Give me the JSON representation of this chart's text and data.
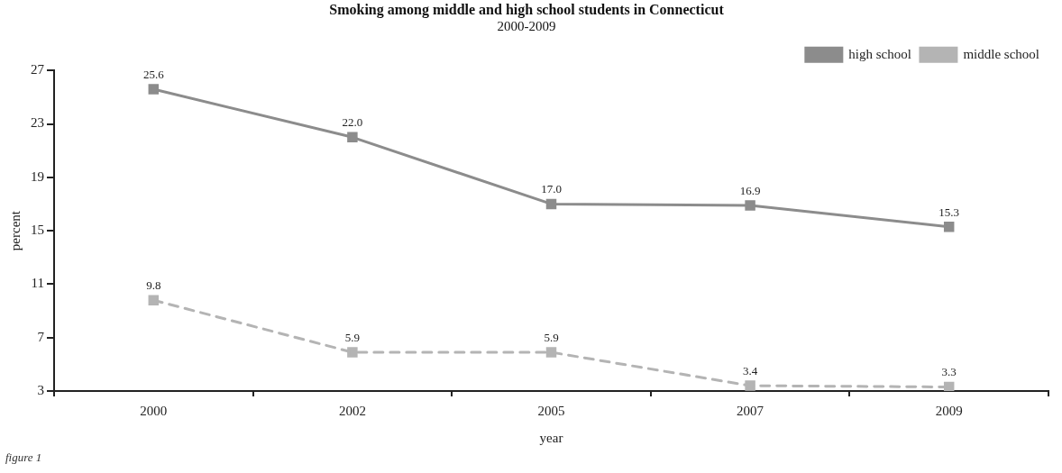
{
  "chart_data": {
    "type": "line",
    "title": "Smoking among middle and high school students in Connecticut",
    "subtitle": "2000-2009",
    "xlabel": "year",
    "ylabel": "percent",
    "categories": [
      "2000",
      "2002",
      "2005",
      "2007",
      "2009"
    ],
    "series": [
      {
        "name": "high school",
        "color": "#8c8c8c",
        "values": [
          25.6,
          22.0,
          17.0,
          16.9,
          15.3
        ],
        "value_labels": [
          "25.6",
          "22.0",
          "17.0",
          "16.9",
          "15.3"
        ],
        "line_style": "solid"
      },
      {
        "name": "middle school",
        "color": "#b4b4b4",
        "values": [
          9.8,
          5.9,
          5.9,
          3.4,
          3.3
        ],
        "value_labels": [
          "9.8",
          "5.9",
          "5.9",
          "3.4",
          "3.3"
        ],
        "line_style": "dashed"
      }
    ],
    "ylim": [
      3,
      27
    ],
    "yticks": [
      3,
      7,
      11,
      15,
      19,
      23,
      27
    ],
    "grid": false,
    "legend": "top right",
    "marker": "square",
    "annotations": [
      "figure 1"
    ]
  }
}
